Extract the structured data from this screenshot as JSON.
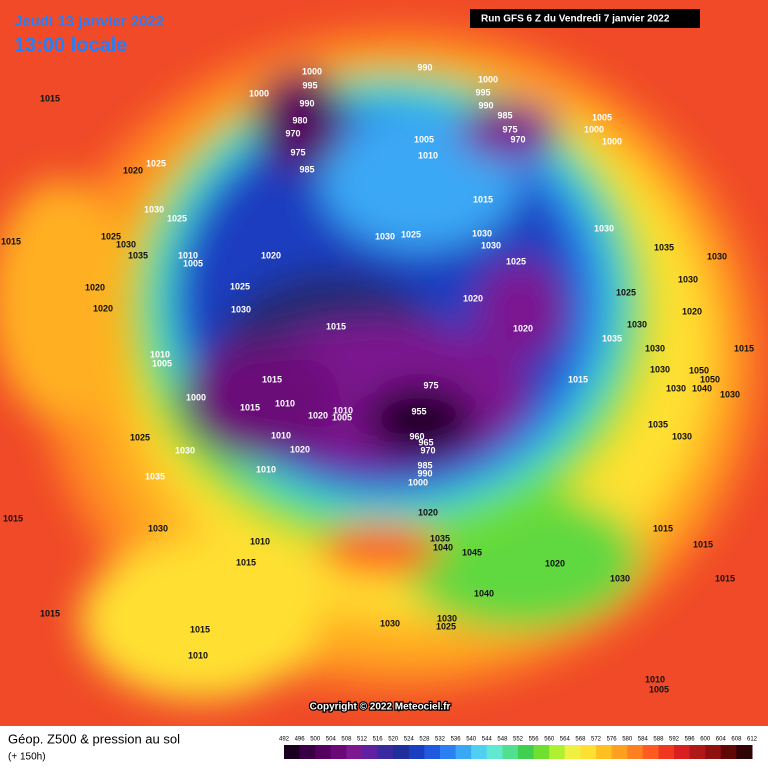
{
  "header": {
    "valid_date": "Jeudi 13 janvier 2022",
    "valid_time": "13:00 locale",
    "run": "Run GFS 6 Z du Vendredi 7 janvier 2022"
  },
  "copyright": "Copyright © 2022 Meteociel.fr",
  "footer": {
    "title": "Géop. Z500 & pression au sol",
    "lead": "(+ 150h)"
  },
  "colorbar": {
    "ticks": [
      492,
      496,
      500,
      504,
      508,
      512,
      516,
      520,
      524,
      528,
      532,
      536,
      540,
      544,
      548,
      552,
      556,
      560,
      564,
      568,
      572,
      576,
      580,
      584,
      588,
      592,
      596,
      600,
      604,
      608,
      612
    ],
    "colors": [
      "#1a0020",
      "#3a0045",
      "#55005f",
      "#6a0a78",
      "#7d1890",
      "#6020a0",
      "#3a2aa0",
      "#1e2e9a",
      "#1a3ec0",
      "#1f5ae0",
      "#2a80f0",
      "#3aa8f5",
      "#50d0f0",
      "#60e8d0",
      "#50e090",
      "#40d050",
      "#70e030",
      "#b0f030",
      "#f0f040",
      "#ffe030",
      "#ffc020",
      "#ffa020",
      "#ff8020",
      "#ff5a20",
      "#f03820",
      "#d82020",
      "#b01818",
      "#901010",
      "#600808",
      "#300404"
    ]
  },
  "isobars": [
    1015,
    1000,
    995,
    990,
    980,
    970,
    975,
    985,
    1000,
    990,
    1000,
    995,
    990,
    985,
    975,
    970,
    1005,
    1000,
    1000,
    1005,
    1010,
    1015,
    1025,
    1020,
    1030,
    1025,
    1030,
    1035,
    1030,
    1015,
    1025,
    1030,
    1035,
    1010,
    1005,
    1020,
    1030,
    1025,
    1030,
    1030,
    1025,
    1020,
    1020,
    1025,
    1030,
    1020,
    1030,
    1035,
    1030,
    1015,
    1050,
    1050,
    1030,
    1030,
    1040,
    1030,
    1025,
    1030,
    1020,
    1020,
    1015,
    1010,
    1005,
    1000,
    1015,
    1015,
    1010,
    1010,
    1020,
    1010,
    1005,
    1020,
    1010,
    975,
    955,
    960,
    965,
    970,
    985,
    990,
    1000,
    1015,
    1035,
    1030,
    1025,
    1030,
    1035,
    1020,
    1035,
    1040,
    1045,
    1020,
    1030,
    1015,
    1015,
    1015,
    1015,
    1030,
    1010,
    1015,
    1040,
    1030,
    1030,
    1025,
    1015,
    1015,
    1010,
    1010,
    1005
  ]
}
